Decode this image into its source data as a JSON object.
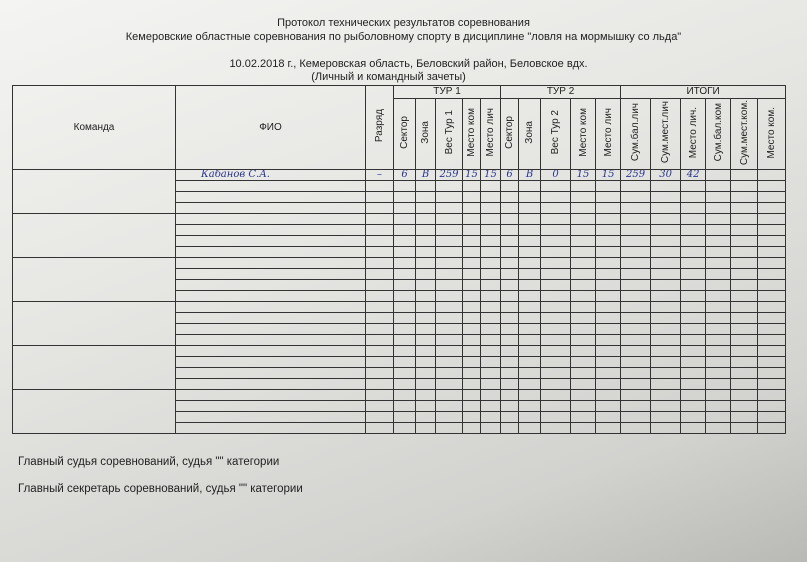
{
  "header": {
    "title": "Протокол технических результатов соревнования",
    "subtitle": "Кемеровские областные соревнования по рыболовному спорту в дисциплине \"ловля на мормышку со льда\"",
    "date_place": "10.02.2018 г., Кемеровская область, Беловский район, Беловское вдх.",
    "scoring": "(Личный и командный зачеты)"
  },
  "table": {
    "col_team": "Команда",
    "col_fio": "ФИО",
    "col_rank": "Разряд",
    "group_tour1": "ТУР 1",
    "group_tour2": "ТУР 2",
    "group_totals": "ИТОГИ",
    "tour1_cols": [
      "Сектор",
      "Зона",
      "Вес Тур 1",
      "Место ком",
      "Место лич"
    ],
    "tour2_cols": [
      "Сектор",
      "Зона",
      "Вес Тур 2",
      "Место ком",
      "Место лич"
    ],
    "totals_cols": [
      "Сум.бал.лич",
      "Сум.мест.лич",
      "Место лич.",
      "Сум.бал.ком",
      "Сум.мест.ком.",
      "Место ком."
    ],
    "rows": [
      {
        "team": "",
        "fio": "Кабанов С.А.",
        "rank": "–",
        "cells": [
          "6",
          "В",
          "259",
          "15",
          "15",
          "6",
          "В",
          "0",
          "15",
          "15",
          "259",
          "30",
          "42",
          "",
          "",
          ""
        ]
      }
    ]
  },
  "footer": {
    "judge": "Главный судья соревнований, судья \"\" категории",
    "secretary": "Главный секретарь соревнований, судья \"\" категории"
  },
  "colors": {
    "handwriting": "#2a3590",
    "lines": "#333333"
  }
}
